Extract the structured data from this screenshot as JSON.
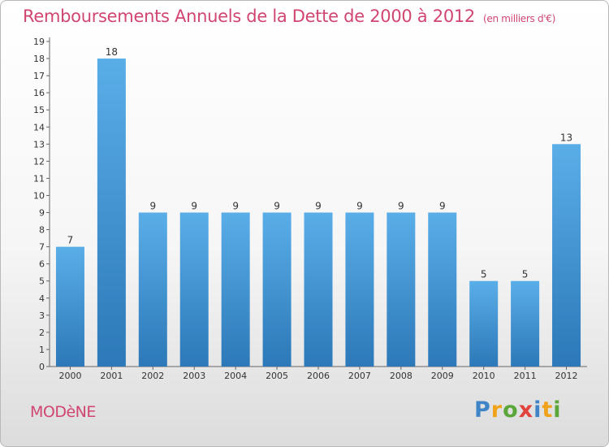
{
  "header": {
    "title": "Remboursements Annuels de la Dette de 2000 à 2012",
    "unit_note": "(en milliers d'€)"
  },
  "footer": {
    "place_name": "MODèNE",
    "brand_logo_letters": [
      "P",
      "r",
      "o",
      "x",
      "i",
      "t",
      "i"
    ]
  },
  "colors": {
    "bar_light": "#5aaee8",
    "bar_dark": "#2c78b8",
    "title_color": "#d14671",
    "axis_color": "#666666"
  },
  "chart_data": {
    "type": "bar",
    "title": "Remboursements Annuels de la Dette de 2000 à 2012",
    "subtitle": "(en milliers d'€)",
    "xlabel": "",
    "ylabel": "",
    "categories": [
      "2000",
      "2001",
      "2002",
      "2003",
      "2004",
      "2005",
      "2006",
      "2007",
      "2008",
      "2009",
      "2010",
      "2011",
      "2012"
    ],
    "values": [
      7,
      18,
      9,
      9,
      9,
      9,
      9,
      9,
      9,
      9,
      5,
      5,
      13
    ],
    "data_labels": [
      "7",
      "18",
      "9",
      "9",
      "9",
      "9",
      "9",
      "9",
      "9",
      "9",
      "5",
      "5",
      "13"
    ],
    "ylim": [
      0,
      19
    ],
    "y_ticks": [
      "0",
      "1",
      "2",
      "3",
      "4",
      "5",
      "6",
      "7",
      "8",
      "9",
      "10",
      "11",
      "12",
      "13",
      "14",
      "15",
      "16",
      "17",
      "18",
      "19"
    ],
    "grid": false,
    "legend": "none"
  }
}
